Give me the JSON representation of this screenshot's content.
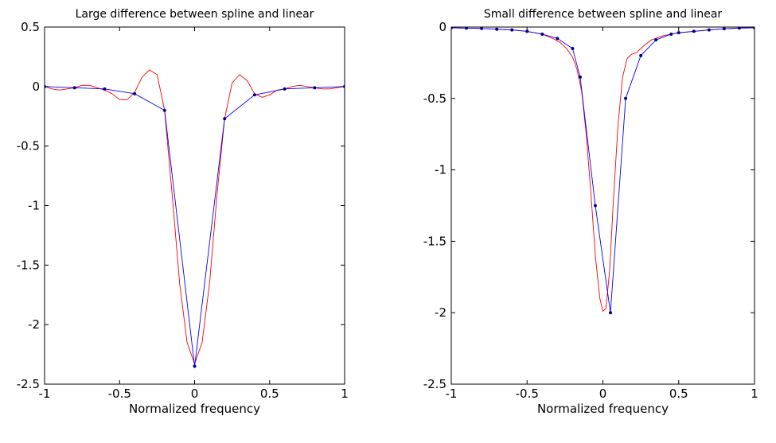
{
  "chart_data": [
    {
      "type": "line",
      "title": "Large difference between spline and linear",
      "xlabel": "Normalized frequency",
      "ylabel": "",
      "xlim": [
        -1,
        1
      ],
      "ylim": [
        -2.5,
        0.5
      ],
      "x_ticks": [
        -1,
        -0.5,
        0,
        0.5,
        1
      ],
      "x_tick_labels": [
        "-1",
        "-0.5",
        "0",
        "0.5",
        "1"
      ],
      "y_ticks": [
        0.5,
        0,
        -0.5,
        -1,
        -1.5,
        -2,
        -2.5
      ],
      "y_tick_labels": [
        "0.5",
        "0",
        "-0.5",
        "-1",
        "-1.5",
        "-2",
        "-2.5"
      ],
      "grid": false,
      "series": [
        {
          "color": "#ff0000",
          "marker": "none",
          "x": [
            -1,
            -0.95,
            -0.9,
            -0.85,
            -0.8,
            -0.75,
            -0.7,
            -0.65,
            -0.6,
            -0.55,
            -0.5,
            -0.45,
            -0.4,
            -0.35,
            -0.3,
            -0.25,
            -0.2,
            -0.15,
            -0.1,
            -0.05,
            0,
            0.05,
            0.1,
            0.15,
            0.2,
            0.25,
            0.3,
            0.35,
            0.4,
            0.45,
            0.5,
            0.55,
            0.6,
            0.65,
            0.7,
            0.75,
            0.8,
            0.85,
            0.9,
            0.95,
            1
          ],
          "y": [
            0,
            -0.02,
            -0.03,
            -0.02,
            -0.01,
            0.01,
            0.01,
            -0.01,
            -0.03,
            -0.06,
            -0.11,
            -0.11,
            -0.05,
            0.08,
            0.14,
            0.1,
            -0.2,
            -0.9,
            -1.65,
            -2.15,
            -2.33,
            -2.15,
            -1.65,
            -0.9,
            -0.27,
            0.03,
            0.1,
            0.05,
            -0.06,
            -0.09,
            -0.07,
            -0.03,
            -0.02,
            0.0,
            0.01,
            0.0,
            -0.01,
            -0.02,
            -0.02,
            -0.01,
            0
          ]
        },
        {
          "color": "#0000ff",
          "marker": "dot",
          "x": [
            -1,
            -0.8,
            -0.6,
            -0.4,
            -0.2,
            0,
            0.2,
            0.4,
            0.6,
            0.8,
            1
          ],
          "y": [
            0,
            -0.01,
            -0.02,
            -0.06,
            -0.2,
            -2.35,
            -0.27,
            -0.07,
            -0.02,
            -0.01,
            0
          ]
        }
      ]
    },
    {
      "type": "line",
      "title": "Small difference between spline and linear",
      "xlabel": "Normalized frequency",
      "ylabel": "",
      "xlim": [
        -1,
        1
      ],
      "ylim": [
        -2.5,
        0
      ],
      "x_ticks": [
        -1,
        -0.5,
        0,
        0.5,
        1
      ],
      "x_tick_labels": [
        "-1",
        "-0.5",
        "0",
        "0.5",
        "1"
      ],
      "y_ticks": [
        0,
        -0.5,
        -1,
        -1.5,
        -2,
        -2.5
      ],
      "y_tick_labels": [
        "0",
        "-0.5",
        "-1",
        "-1.5",
        "-2",
        "-2.5"
      ],
      "grid": false,
      "series": [
        {
          "color": "#ff0000",
          "marker": "none",
          "x": [
            -1,
            -0.9,
            -0.8,
            -0.7,
            -0.6,
            -0.5,
            -0.4,
            -0.33,
            -0.28,
            -0.24,
            -0.2,
            -0.17,
            -0.14,
            -0.11,
            -0.08,
            -0.05,
            -0.02,
            0.0,
            0.02,
            0.045,
            0.07,
            0.1,
            0.13,
            0.16,
            0.19,
            0.22,
            0.26,
            0.32,
            0.4,
            0.5,
            0.6,
            0.7,
            0.8,
            0.9,
            1
          ],
          "y": [
            -0.005,
            -0.008,
            -0.01,
            -0.015,
            -0.02,
            -0.03,
            -0.05,
            -0.08,
            -0.11,
            -0.15,
            -0.21,
            -0.3,
            -0.45,
            -0.75,
            -1.15,
            -1.6,
            -1.9,
            -1.99,
            -1.97,
            -1.7,
            -1.2,
            -0.68,
            -0.35,
            -0.22,
            -0.19,
            -0.18,
            -0.14,
            -0.09,
            -0.06,
            -0.04,
            -0.03,
            -0.02,
            -0.012,
            -0.007,
            -0.005
          ]
        },
        {
          "color": "#0000ff",
          "marker": "dot",
          "x": [
            -1,
            -0.9,
            -0.8,
            -0.7,
            -0.6,
            -0.5,
            -0.4,
            -0.3,
            -0.2,
            -0.15,
            -0.05,
            0.05,
            0.15,
            0.25,
            0.35,
            0.45,
            0.5,
            0.6,
            0.7,
            0.8,
            0.9,
            1
          ],
          "y": [
            -0.005,
            -0.008,
            -0.01,
            -0.015,
            -0.02,
            -0.03,
            -0.05,
            -0.08,
            -0.15,
            -0.35,
            -1.25,
            -2.0,
            -0.5,
            -0.2,
            -0.09,
            -0.05,
            -0.04,
            -0.03,
            -0.02,
            -0.012,
            -0.007,
            -0.005
          ]
        }
      ]
    }
  ]
}
